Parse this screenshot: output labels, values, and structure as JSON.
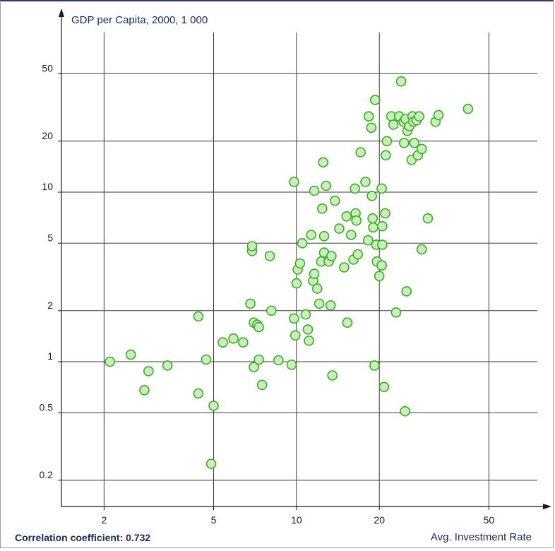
{
  "chart_data": {
    "type": "scatter",
    "xlabel": "Avg. Investment Rate",
    "ylabel": "GDP per Capita, 2000, 1 000",
    "x_scale": "log",
    "y_scale": "log",
    "xlim": [
      1.4,
      75
    ],
    "ylim": [
      0.14,
      100
    ],
    "x_ticks": [
      2,
      5,
      10,
      20,
      50
    ],
    "y_ticks": [
      0.2,
      0.5,
      1,
      2,
      5,
      10,
      20,
      50
    ],
    "grid": true,
    "annotation": "Correlation coefficient: 0.732",
    "marker_color": "#c8f0b8",
    "marker_edge_color": "#3caa2a",
    "points": [
      [
        2.1,
        1.0
      ],
      [
        2.5,
        1.1
      ],
      [
        2.8,
        0.68
      ],
      [
        2.9,
        0.88
      ],
      [
        3.4,
        0.95
      ],
      [
        4.4,
        0.65
      ],
      [
        4.4,
        1.85
      ],
      [
        4.7,
        1.03
      ],
      [
        4.9,
        0.25
      ],
      [
        5.0,
        0.55
      ],
      [
        5.4,
        1.3
      ],
      [
        5.9,
        1.37
      ],
      [
        6.4,
        1.3
      ],
      [
        6.8,
        2.2
      ],
      [
        6.9,
        4.5
      ],
      [
        6.9,
        4.8
      ],
      [
        7.0,
        0.93
      ],
      [
        7.0,
        1.7
      ],
      [
        7.2,
        1.65
      ],
      [
        7.3,
        1.03
      ],
      [
        7.3,
        1.6
      ],
      [
        7.5,
        0.73
      ],
      [
        8.0,
        4.2
      ],
      [
        8.1,
        2.0
      ],
      [
        8.6,
        1.02
      ],
      [
        9.6,
        0.96
      ],
      [
        9.8,
        11.5
      ],
      [
        9.8,
        1.8
      ],
      [
        9.9,
        1.43
      ],
      [
        10.0,
        2.9
      ],
      [
        10.1,
        3.5
      ],
      [
        10.3,
        3.8
      ],
      [
        10.5,
        5.0
      ],
      [
        10.8,
        1.9
      ],
      [
        11.0,
        1.55
      ],
      [
        11.1,
        1.33
      ],
      [
        11.3,
        5.6
      ],
      [
        11.5,
        3.0
      ],
      [
        11.6,
        3.3
      ],
      [
        11.6,
        10.2
      ],
      [
        11.9,
        2.7
      ],
      [
        12.1,
        2.2
      ],
      [
        12.3,
        3.9
      ],
      [
        12.4,
        8.0
      ],
      [
        12.5,
        15.0
      ],
      [
        12.6,
        5.5
      ],
      [
        12.6,
        4.4
      ],
      [
        12.8,
        10.9
      ],
      [
        13.1,
        3.9
      ],
      [
        13.3,
        2.15
      ],
      [
        13.4,
        4.2
      ],
      [
        13.5,
        0.83
      ],
      [
        13.8,
        8.9
      ],
      [
        14.3,
        6.1
      ],
      [
        14.9,
        3.6
      ],
      [
        15.2,
        7.2
      ],
      [
        15.3,
        1.7
      ],
      [
        15.8,
        5.6
      ],
      [
        16.1,
        4.0
      ],
      [
        16.3,
        10.5
      ],
      [
        16.4,
        7.5
      ],
      [
        16.5,
        6.8
      ],
      [
        16.7,
        4.3
      ],
      [
        17.1,
        17.2
      ],
      [
        17.8,
        11.5
      ],
      [
        18.2,
        5.2
      ],
      [
        18.3,
        28.0
      ],
      [
        18.7,
        24.0
      ],
      [
        18.8,
        9.5
      ],
      [
        18.9,
        7.0
      ],
      [
        19.0,
        6.2
      ],
      [
        19.2,
        0.95
      ],
      [
        19.3,
        35.0
      ],
      [
        19.5,
        4.9
      ],
      [
        19.6,
        3.9
      ],
      [
        20.0,
        3.2
      ],
      [
        20.4,
        10.5
      ],
      [
        20.4,
        3.7
      ],
      [
        20.5,
        4.9
      ],
      [
        20.5,
        6.3
      ],
      [
        20.8,
        0.71
      ],
      [
        21.0,
        7.5
      ],
      [
        21.1,
        16.5
      ],
      [
        21.3,
        20.0
      ],
      [
        22.1,
        28.0
      ],
      [
        22.5,
        25.0
      ],
      [
        23.0,
        1.95
      ],
      [
        23.6,
        28.0
      ],
      [
        24.0,
        45.0
      ],
      [
        24.5,
        26.0
      ],
      [
        24.6,
        19.5
      ],
      [
        24.8,
        0.51
      ],
      [
        24.9,
        27.0
      ],
      [
        25.1,
        2.6
      ],
      [
        25.3,
        23.0
      ],
      [
        25.7,
        24.5
      ],
      [
        26.2,
        15.5
      ],
      [
        26.4,
        28.0
      ],
      [
        26.6,
        26.0
      ],
      [
        26.8,
        19.5
      ],
      [
        27.3,
        26.5
      ],
      [
        27.6,
        16.5
      ],
      [
        27.9,
        28.0
      ],
      [
        28.5,
        4.6
      ],
      [
        28.5,
        18.0
      ],
      [
        30.0,
        7.0
      ],
      [
        32.0,
        26.0
      ],
      [
        32.8,
        28.5
      ],
      [
        42.0,
        31.0
      ]
    ]
  }
}
